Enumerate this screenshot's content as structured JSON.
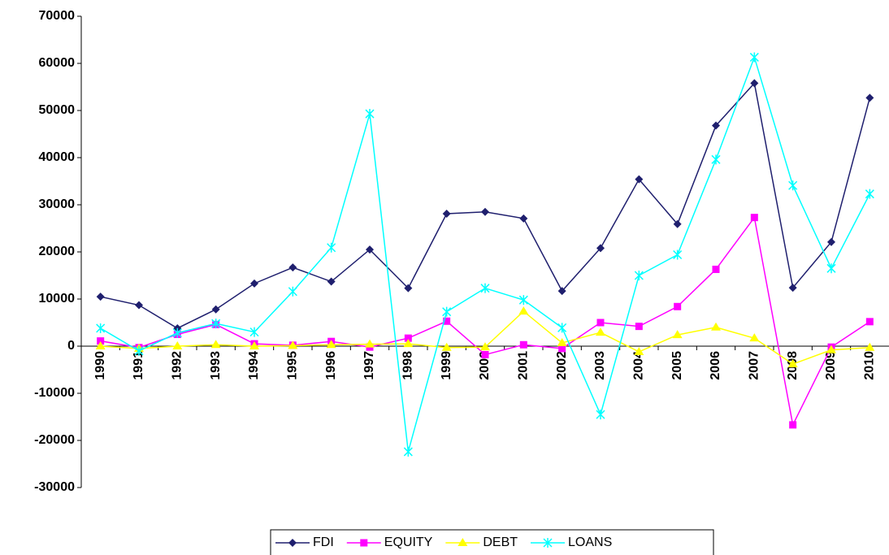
{
  "chart_data": {
    "type": "line",
    "categories": [
      "1990",
      "1991",
      "1992",
      "1993",
      "1994",
      "1995",
      "1996",
      "1997",
      "1998",
      "1999",
      "2000",
      "2001",
      "2002",
      "2003",
      "2004",
      "2005",
      "2006",
      "2007",
      "2008",
      "2009",
      "2010"
    ],
    "series": [
      {
        "name": "FDI",
        "color": "#1f1f6e",
        "marker": "diamond",
        "values": [
          10500,
          8700,
          3800,
          7800,
          13300,
          16700,
          13700,
          20500,
          12300,
          28100,
          28500,
          27100,
          11700,
          20800,
          35400,
          25900,
          46800,
          55800,
          12400,
          22100,
          52700
        ]
      },
      {
        "name": "EQUITY",
        "color": "#ff00ff",
        "marker": "square",
        "values": [
          1100,
          -300,
          2500,
          4600,
          500,
          200,
          1000,
          -200,
          1700,
          5300,
          -1800,
          300,
          -500,
          5000,
          4200,
          8400,
          16300,
          27300,
          -16700,
          -200,
          5200
        ]
      },
      {
        "name": "DEBT",
        "color": "#ffff00",
        "marker": "triangle",
        "values": [
          0,
          -500,
          0,
          300,
          0,
          100,
          300,
          400,
          500,
          -300,
          -200,
          7400,
          700,
          2900,
          -1200,
          2400,
          4000,
          1700,
          -3800,
          -800,
          -300
        ]
      },
      {
        "name": "LOANS",
        "color": "#00ffff",
        "marker": "star",
        "values": [
          3800,
          -1000,
          2800,
          4800,
          3000,
          11600,
          20900,
          49300,
          -22400,
          7300,
          12300,
          9800,
          3900,
          -14500,
          15000,
          19400,
          39600,
          61300,
          34100,
          16500,
          32300
        ]
      }
    ],
    "ylim": [
      -30000,
      70000
    ],
    "yticks": [
      -30000,
      -20000,
      -10000,
      0,
      10000,
      20000,
      30000,
      40000,
      50000,
      60000,
      70000
    ],
    "grid": false,
    "legend": "bottom"
  }
}
